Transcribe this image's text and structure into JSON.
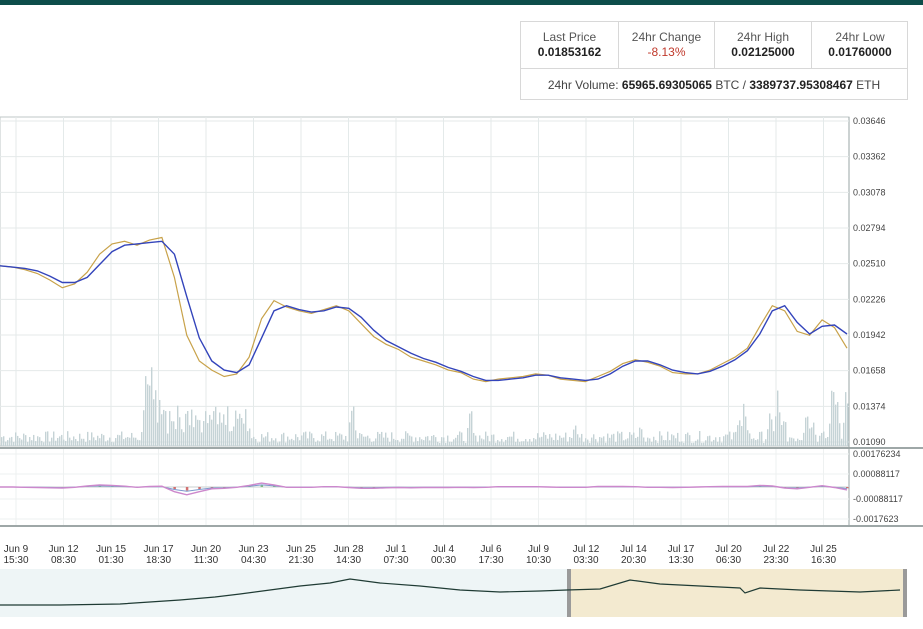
{
  "stats": {
    "last_price": {
      "label": "Last Price",
      "value": "0.01853162"
    },
    "change_24h": {
      "label": "24hr Change",
      "value": "-8.13%"
    },
    "high_24h": {
      "label": "24hr High",
      "value": "0.02125000"
    },
    "low_24h": {
      "label": "24hr Low",
      "value": "0.01760000"
    },
    "volume": {
      "label": "24hr Volume:",
      "btc": "65965.69305065",
      "btc_unit": "BTC",
      "sep": "/",
      "eth": "3389737.95308467",
      "eth_unit": "ETH"
    }
  },
  "colors": {
    "topbar": "#0d4d4a",
    "price_line": "#c8a24a",
    "ema_line": "#3344bb",
    "volume_bars": "#c5d3d6",
    "macd_line": "#cc88cc",
    "macd_signal": "#7a99cc",
    "hist_pos": "#7fbf7f",
    "hist_neg": "#d27070",
    "nav_left_bg": "#eef5f6",
    "nav_right_bg": "#f3ead0",
    "nav_line": "#1f3b34"
  },
  "chart_data": {
    "type": "line",
    "ylim": [
      0.0109,
      0.03646
    ],
    "y_ticks": [
      "0.03646",
      "0.03362",
      "0.03078",
      "0.02794",
      "0.02510",
      "0.02226",
      "0.01942",
      "0.01658",
      "0.01374",
      "0.01090"
    ],
    "macd_ticks": [
      "0.00176234",
      "0.00088117",
      "-0.00088117",
      "-0.0017623"
    ],
    "x_ticks": [
      {
        "d": "Jun 9",
        "t": "15:30"
      },
      {
        "d": "Jun 12",
        "t": "08:30"
      },
      {
        "d": "Jun 15",
        "t": "01:30"
      },
      {
        "d": "Jun 17",
        "t": "18:30"
      },
      {
        "d": "Jun 20",
        "t": "11:30"
      },
      {
        "d": "Jun 23",
        "t": "04:30"
      },
      {
        "d": "Jun 25",
        "t": "21:30"
      },
      {
        "d": "Jun 28",
        "t": "14:30"
      },
      {
        "d": "Jul 1",
        "t": "07:30"
      },
      {
        "d": "Jul 4",
        "t": "00:30"
      },
      {
        "d": "Jul 6",
        "t": "17:30"
      },
      {
        "d": "Jul 9",
        "t": "10:30"
      },
      {
        "d": "Jul 12",
        "t": "03:30"
      },
      {
        "d": "Jul 14",
        "t": "20:30"
      },
      {
        "d": "Jul 17",
        "t": "13:30"
      },
      {
        "d": "Jul 20",
        "t": "06:30"
      },
      {
        "d": "Jul 22",
        "t": "23:30"
      },
      {
        "d": "Jul 25",
        "t": "16:30"
      }
    ],
    "series": [
      {
        "values": [
          0.0249,
          0.0248,
          0.0246,
          0.0243,
          0.0238,
          0.0232,
          0.0235,
          0.0244,
          0.0258,
          0.0266,
          0.0268,
          0.0265,
          0.0269,
          0.0271,
          0.024,
          0.0195,
          0.0175,
          0.0168,
          0.0163,
          0.0165,
          0.0178,
          0.0208,
          0.0222,
          0.0217,
          0.0214,
          0.0212,
          0.0215,
          0.0218,
          0.0214,
          0.0204,
          0.0194,
          0.0188,
          0.0184,
          0.0178,
          0.0175,
          0.0172,
          0.0168,
          0.0166,
          0.0161,
          0.0159,
          0.0161,
          0.0162,
          0.0163,
          0.0165,
          0.0164,
          0.0161,
          0.016,
          0.0159,
          0.0163,
          0.0167,
          0.0173,
          0.0176,
          0.0174,
          0.0171,
          0.0166,
          0.0165,
          0.0165,
          0.0168,
          0.0173,
          0.0178,
          0.0185,
          0.0202,
          0.0218,
          0.0214,
          0.0198,
          0.0195,
          0.0207,
          0.0201,
          0.0185
        ]
      },
      {
        "values": [
          0.0249,
          0.0248,
          0.0247,
          0.0245,
          0.0241,
          0.0236,
          0.0236,
          0.024,
          0.025,
          0.026,
          0.0265,
          0.0266,
          0.0267,
          0.0268,
          0.0258,
          0.0225,
          0.0193,
          0.0175,
          0.0168,
          0.0166,
          0.0172,
          0.0193,
          0.0214,
          0.0218,
          0.0215,
          0.0213,
          0.0214,
          0.0217,
          0.0216,
          0.0209,
          0.0199,
          0.0191,
          0.0186,
          0.0181,
          0.0177,
          0.0174,
          0.017,
          0.0167,
          0.0163,
          0.016,
          0.016,
          0.0161,
          0.0162,
          0.0164,
          0.0164,
          0.0162,
          0.0161,
          0.016,
          0.0161,
          0.0165,
          0.0171,
          0.0175,
          0.0175,
          0.0172,
          0.0168,
          0.0166,
          0.0165,
          0.0167,
          0.0171,
          0.0176,
          0.0183,
          0.0196,
          0.0214,
          0.0218,
          0.0205,
          0.0196,
          0.0202,
          0.0203,
          0.0196
        ]
      }
    ]
  }
}
